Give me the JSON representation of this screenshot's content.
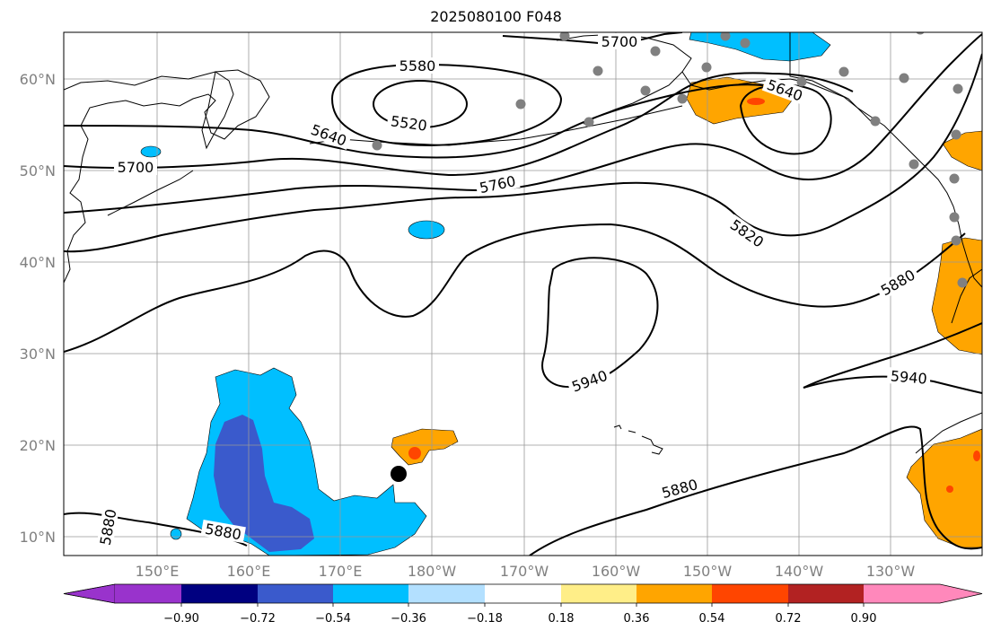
{
  "title": "2025080100 F048",
  "lat_labels": [
    "60°N",
    "50°N",
    "40°N",
    "30°N",
    "20°N",
    "10°N"
  ],
  "lon_labels": [
    "150°E",
    "160°E",
    "170°E",
    "180°W",
    "170°W",
    "160°W",
    "150°W",
    "140°W",
    "130°W"
  ],
  "contour_labels": [
    "5520",
    "5580",
    "5640",
    "5640",
    "5700",
    "5700",
    "5760",
    "5820",
    "5880",
    "5880",
    "5880",
    "5880",
    "5940",
    "5940"
  ],
  "colorbar": {
    "colors": [
      "#9933cc",
      "#000080",
      "#3a5acc",
      "#00bfff",
      "#b3e0ff",
      "#ffffff",
      "#ffee88",
      "#ffa500",
      "#ff4500",
      "#b22222",
      "#ff88bb"
    ],
    "ticks": [
      "−0.90",
      "−0.72",
      "−0.54",
      "−0.36",
      "−0.18",
      "0.18",
      "0.36",
      "0.54",
      "0.72",
      "0.90"
    ]
  },
  "colors": {
    "grid": "#999999",
    "coast": "#000000",
    "contour": "#000000",
    "station": "#808080",
    "marker": "#000000"
  }
}
